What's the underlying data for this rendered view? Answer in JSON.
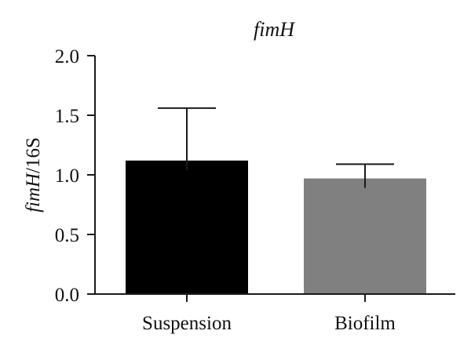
{
  "chart_data": {
    "type": "bar",
    "title": "fimH",
    "ylabel_parts": {
      "italic": "fimH",
      "plain": "/16S"
    },
    "xlabel": "",
    "categories": [
      "Suspension",
      "Biofilm"
    ],
    "values": [
      1.12,
      0.97
    ],
    "error_upper": [
      0.44,
      0.12
    ],
    "bar_colors": [
      "#000000",
      "#808080"
    ],
    "ylim": [
      0.0,
      2.0
    ],
    "yticks": [
      "0.0",
      "0.5",
      "1.0",
      "1.5",
      "2.0"
    ],
    "ytick_values": [
      0.0,
      0.5,
      1.0,
      1.5,
      2.0
    ],
    "grid": false,
    "legend": "none"
  }
}
